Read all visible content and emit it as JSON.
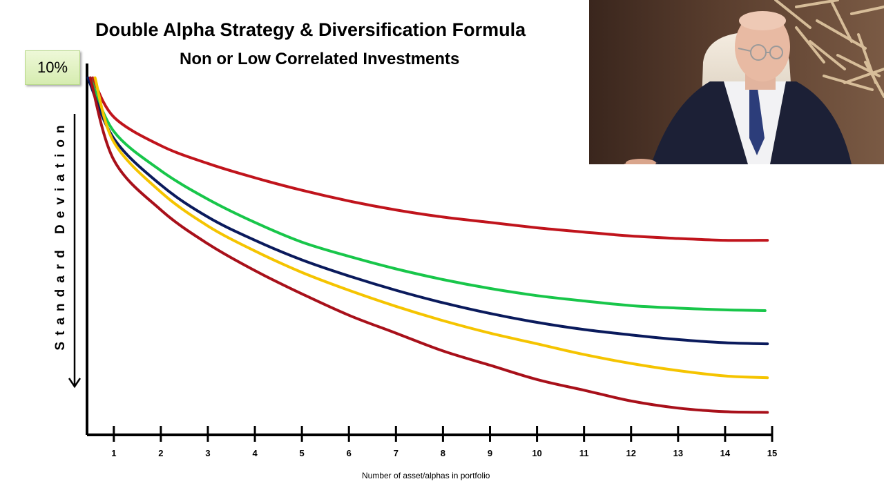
{
  "chart_data": {
    "type": "line",
    "title": "Double Alpha Strategy & Diversification Formula",
    "subtitle": "Non or Low Correlated Investments",
    "ylabel": "Standard Deviation",
    "xlabel": "Number of asset/alphas in portfolio",
    "start_label": "10%",
    "x_ticks": [
      1,
      2,
      3,
      4,
      5,
      6,
      7,
      8,
      9,
      10,
      11,
      12,
      13,
      14,
      15
    ],
    "xlim": [
      0.43,
      15
    ],
    "ylim": [
      0,
      10.4
    ],
    "grid": false,
    "legend": "none",
    "y_arrow": "down",
    "series": [
      {
        "color": "#c0141c",
        "x": [
          0.55,
          1,
          2,
          3,
          4,
          5,
          6,
          7,
          8,
          9,
          10,
          11,
          12,
          13,
          14,
          14.9
        ],
        "values": [
          10.0,
          8.9,
          8.1,
          7.6,
          7.2,
          6.85,
          6.55,
          6.3,
          6.1,
          5.95,
          5.8,
          5.68,
          5.57,
          5.5,
          5.45,
          5.45
        ]
      },
      {
        "color": "#18c64a",
        "x": [
          0.5,
          1,
          2,
          3,
          4,
          5,
          6,
          7,
          8,
          9,
          10,
          11,
          12,
          13,
          14,
          14.85
        ],
        "values": [
          10.0,
          8.5,
          7.4,
          6.6,
          5.95,
          5.4,
          5.0,
          4.65,
          4.35,
          4.1,
          3.9,
          3.75,
          3.62,
          3.55,
          3.5,
          3.48
        ]
      },
      {
        "color": "#0a1a5c",
        "x": [
          0.45,
          1,
          2,
          3,
          4,
          5,
          6,
          7,
          8,
          9,
          10,
          11,
          12,
          13,
          14,
          14.9
        ],
        "values": [
          10.0,
          8.3,
          7.0,
          6.1,
          5.45,
          4.9,
          4.45,
          4.05,
          3.7,
          3.4,
          3.15,
          2.95,
          2.8,
          2.67,
          2.58,
          2.55
        ]
      },
      {
        "color": "#f5c400",
        "x": [
          0.6,
          1,
          2,
          3,
          4,
          5,
          6,
          7,
          8,
          9,
          10,
          11,
          12,
          13,
          14,
          14.9
        ],
        "values": [
          10.0,
          8.2,
          6.8,
          5.85,
          5.15,
          4.55,
          4.05,
          3.6,
          3.2,
          2.85,
          2.55,
          2.25,
          2.0,
          1.8,
          1.65,
          1.6
        ]
      },
      {
        "color": "#a8101a",
        "x": [
          0.5,
          1,
          2,
          3,
          4,
          5,
          6,
          7,
          8,
          9,
          10,
          11,
          12,
          13,
          14,
          14.9
        ],
        "values": [
          10.0,
          7.7,
          6.3,
          5.35,
          4.6,
          3.95,
          3.35,
          2.85,
          2.35,
          1.95,
          1.55,
          1.25,
          0.95,
          0.75,
          0.65,
          0.63
        ]
      }
    ]
  }
}
